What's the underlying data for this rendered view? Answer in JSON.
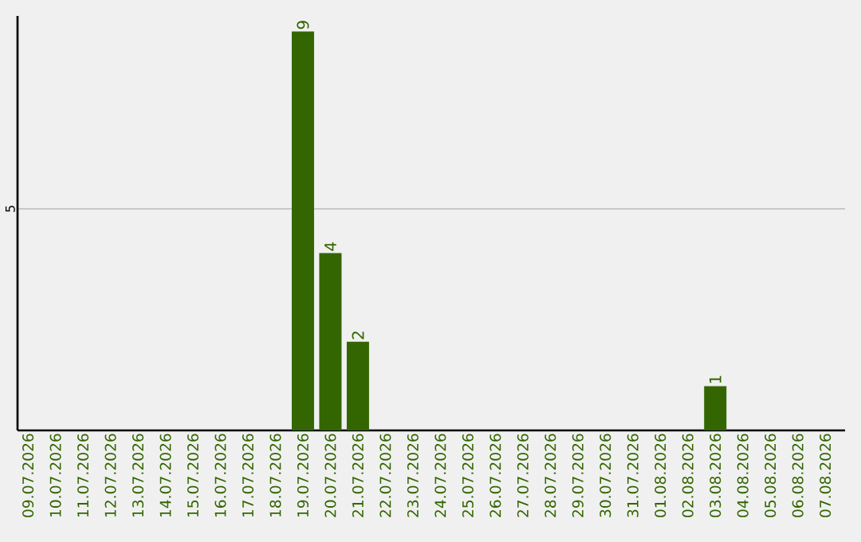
{
  "chart_data": {
    "type": "bar",
    "categories": [
      "09.07.2026",
      "10.07.2026",
      "11.07.2026",
      "12.07.2026",
      "13.07.2026",
      "14.07.2026",
      "15.07.2026",
      "16.07.2026",
      "17.07.2026",
      "18.07.2026",
      "19.07.2026",
      "20.07.2026",
      "21.07.2026",
      "22.07.2026",
      "23.07.2026",
      "24.07.2026",
      "25.07.2026",
      "26.07.2026",
      "27.07.2026",
      "28.07.2026",
      "29.07.2026",
      "30.07.2026",
      "31.07.2026",
      "01.08.2026",
      "02.08.2026",
      "03.08.2026",
      "04.08.2026",
      "05.08.2026",
      "06.08.2026",
      "07.08.2026"
    ],
    "values": [
      0,
      0,
      0,
      0,
      0,
      0,
      0,
      0,
      0,
      0,
      9,
      4,
      2,
      0,
      0,
      0,
      0,
      0,
      0,
      0,
      0,
      0,
      0,
      0,
      0,
      1,
      0,
      0,
      0,
      0
    ],
    "value_labels": [
      null,
      null,
      null,
      null,
      null,
      null,
      null,
      null,
      null,
      null,
      "9",
      "4",
      "2",
      null,
      null,
      null,
      null,
      null,
      null,
      null,
      null,
      null,
      null,
      null,
      null,
      "1",
      null,
      null,
      null,
      null
    ],
    "color": "#336600",
    "ylim": [
      0,
      9.35
    ],
    "yticks": [
      5
    ],
    "grid": "y"
  }
}
